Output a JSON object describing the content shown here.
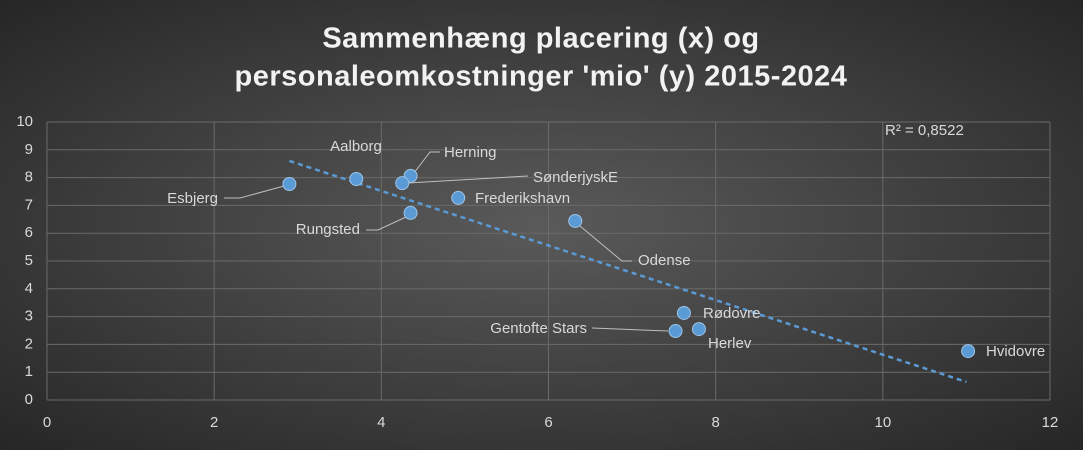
{
  "chart_data": {
    "type": "scatter",
    "title": [
      "Sammenhæng placering (x) og",
      "personaleomkostninger 'mio' (y) 2015-2024"
    ],
    "annotation": "R² = 0,8522",
    "points": {
      "labels": [
        "Esbjerg",
        "Aalborg",
        "Herning",
        "SønderjyskE",
        "Frederikshavn",
        "Rungsted",
        "Odense",
        "Rødovre",
        "Gentofte Stars",
        "Herlev",
        "Hvidovre"
      ],
      "x": [
        2.9,
        3.7,
        4.35,
        4.25,
        4.92,
        4.35,
        6.32,
        7.62,
        7.52,
        7.8,
        11.02
      ],
      "y": [
        7.77,
        7.95,
        8.06,
        7.8,
        7.27,
        6.73,
        6.44,
        3.13,
        2.48,
        2.55,
        1.76
      ],
      "color": "#5b9bd5"
    },
    "trendline": {
      "x": [
        2.9,
        11
      ],
      "y": [
        8.6,
        0.65
      ],
      "color": "#5b9bd5",
      "dashed": true
    },
    "xlim": [
      0,
      12
    ],
    "xticks": [
      0,
      2,
      4,
      6,
      8,
      10,
      12
    ],
    "ylim": [
      0,
      10
    ],
    "yticks": [
      0,
      1,
      2,
      3,
      4,
      5,
      6,
      7,
      8,
      9,
      10
    ],
    "grid": true
  }
}
